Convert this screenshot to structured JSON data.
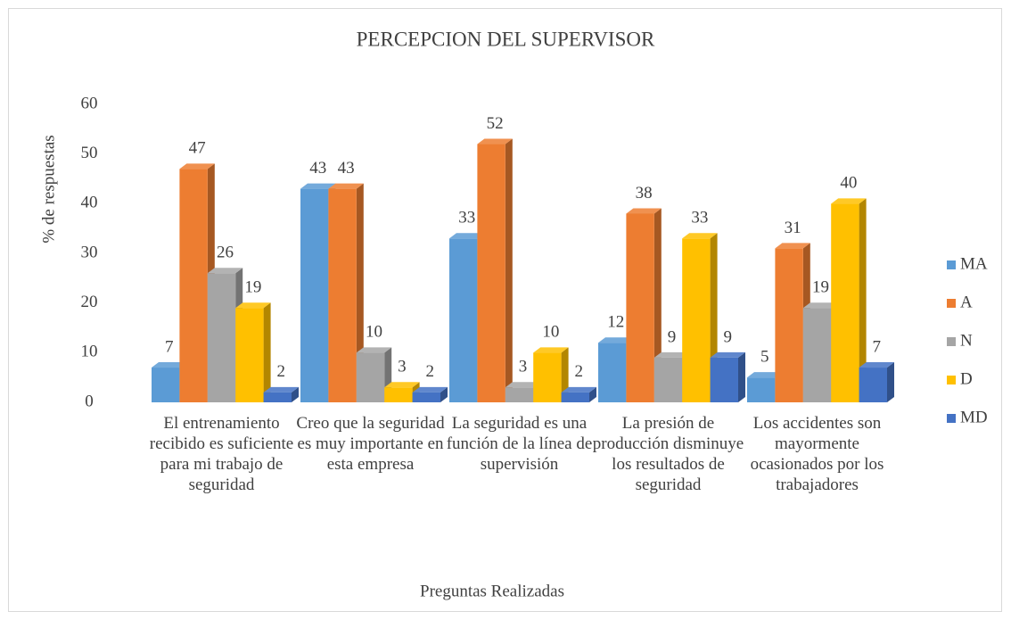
{
  "chart_data": {
    "type": "bar3d",
    "title": "PERCEPCION DEL SUPERVISOR",
    "x_label": "Preguntas Realizadas",
    "y_label": "% de respuestas",
    "categories": [
      "El entrenamiento recibido es suficiente para mi trabajo de seguridad",
      "Creo que la seguridad es muy importante en esta empresa",
      "La seguridad es una función de la línea de supervisión",
      "La presión de producción disminuye los resultados de seguridad",
      "Los accidentes son mayormente ocasionados por los trabajadores"
    ],
    "series": [
      {
        "name": "MA",
        "color": "#5b9bd5",
        "values": [
          7,
          43,
          33,
          12,
          5
        ]
      },
      {
        "name": "A",
        "color": "#ed7d31",
        "values": [
          47,
          43,
          52,
          38,
          31
        ]
      },
      {
        "name": "N",
        "color": "#a5a5a5",
        "values": [
          26,
          10,
          3,
          9,
          19
        ]
      },
      {
        "name": "D",
        "color": "#ffc000",
        "values": [
          19,
          3,
          10,
          33,
          40
        ]
      },
      {
        "name": "MD",
        "color": "#4472c4",
        "values": [
          2,
          2,
          2,
          9,
          7
        ]
      }
    ],
    "ylim": [
      0,
      60
    ],
    "yticks": [
      0,
      10,
      20,
      30,
      40,
      50,
      60
    ],
    "grid": false,
    "legend": "right"
  }
}
